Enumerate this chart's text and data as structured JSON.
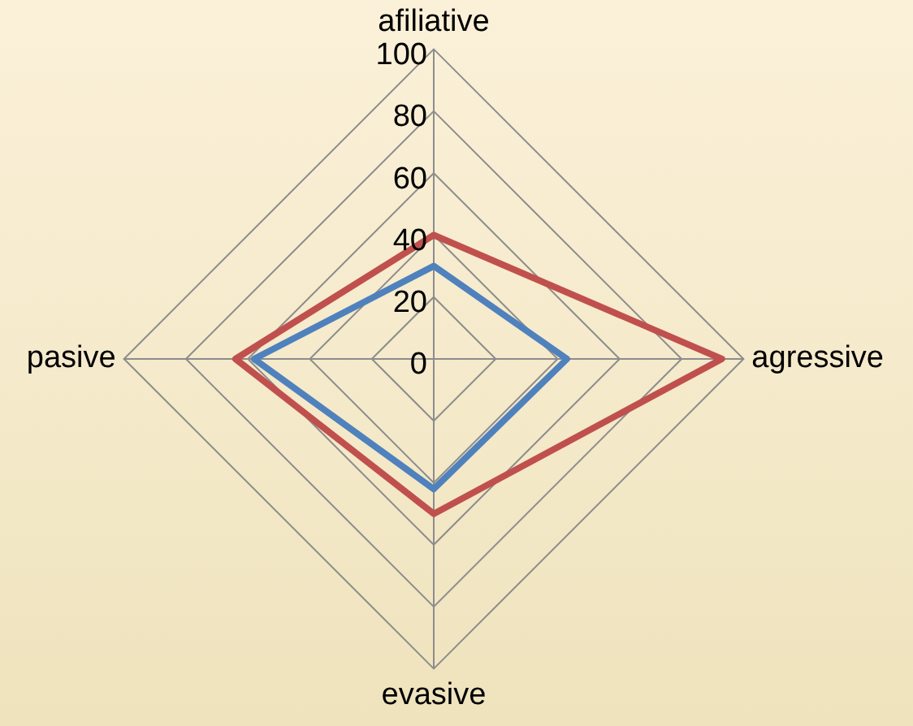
{
  "chart_data": {
    "type": "radar",
    "categories": [
      "afiliative",
      "agressive",
      "evasive",
      "pasive"
    ],
    "series": [
      {
        "color": "#c0504d",
        "values": [
          40,
          93,
          50,
          64
        ]
      },
      {
        "color": "#4f81bd",
        "values": [
          30,
          43,
          42,
          58
        ]
      }
    ],
    "ylim": [
      0,
      100
    ],
    "yticks": [
      0,
      20,
      40,
      60,
      80,
      100
    ],
    "grid": true,
    "legend": false,
    "marker": "none",
    "line_style": "solid"
  }
}
